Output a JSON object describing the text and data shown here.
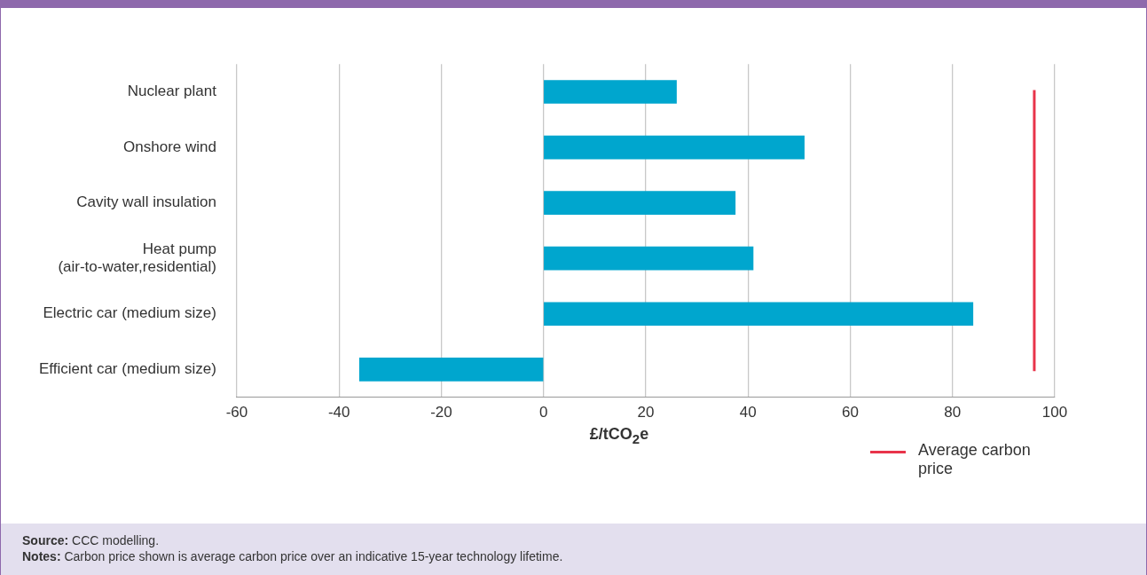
{
  "chart_data": {
    "type": "bar",
    "orientation": "horizontal",
    "categories": [
      "Nuclear plant",
      "Onshore wind",
      "Cavity wall insulation",
      "Heat pump\n(air-to-water,residential)",
      "Electric car (medium size)",
      "Efficient car (medium size)"
    ],
    "values": [
      26,
      51,
      37.5,
      41,
      84,
      -36
    ],
    "color": "#00a6ce",
    "xlim": [
      -60,
      100
    ],
    "xticks": [
      -60,
      -40,
      -20,
      0,
      20,
      40,
      60,
      80,
      100
    ],
    "xlabel": "£/tCO$_{2}$e",
    "grid": "x",
    "legend": "bottom right",
    "ref_lines": [
      {
        "axis": "x",
        "value": 96,
        "label": "Average carbon price",
        "color": "#e8344a"
      }
    ],
    "annotations": [
      "Source: CCC modelling.",
      "Notes: Carbon price shown is average carbon price over an indicative 15-year technology lifetime."
    ]
  }
}
